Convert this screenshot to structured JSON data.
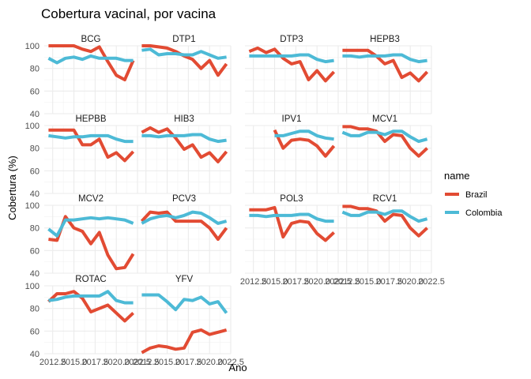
{
  "chart_data": {
    "type": "line",
    "title": "Cobertura vacinal, por vacina",
    "xlabel": "Ano",
    "ylabel": "Cobertura (%)",
    "ylim": [
      40,
      100
    ],
    "yticks": [
      40,
      60,
      80,
      100
    ],
    "xlim": [
      2011.5,
      2022.5
    ],
    "xticks": [
      2012.5,
      2015,
      2017.5,
      2020,
      2022.5
    ],
    "xtick_labels": [
      "2012.5",
      "2015.0",
      "2017.5",
      "2020.0",
      "2022.5"
    ],
    "legend": {
      "title": "name",
      "position": "right",
      "entries": [
        {
          "name": "Brazil",
          "color": "#E24B33"
        },
        {
          "name": "Colombia",
          "color": "#4DBAD6"
        }
      ]
    },
    "x": [
      2012,
      2013,
      2014,
      2015,
      2016,
      2017,
      2018,
      2019,
      2020,
      2021,
      2022
    ],
    "facets": [
      {
        "name": "BCG",
        "series": [
          {
            "name": "Brazil",
            "values": [
              100,
              100,
              100,
              100,
              97,
              95,
              99,
              86,
              74,
              70,
              87
            ]
          },
          {
            "name": "Colombia",
            "values": [
              89,
              85,
              89,
              90,
              88,
              91,
              89,
              89,
              89,
              87,
              87
            ]
          }
        ]
      },
      {
        "name": "DTP1",
        "series": [
          {
            "name": "Brazil",
            "values": [
              100,
              100,
              99,
              98,
              95,
              91,
              88,
              80,
              87,
              74,
              84
            ]
          },
          {
            "name": "Colombia",
            "values": [
              96,
              97,
              92,
              93,
              93,
              92,
              92,
              95,
              92,
              89,
              90
            ]
          }
        ]
      },
      {
        "name": "DTP3",
        "series": [
          {
            "name": "Brazil",
            "values": [
              95,
              98,
              94,
              97,
              89,
              84,
              86,
              70,
              78,
              69,
              77
            ]
          },
          {
            "name": "Colombia",
            "values": [
              91,
              91,
              91,
              91,
              91,
              91,
              92,
              92,
              88,
              86,
              87
            ]
          }
        ]
      },
      {
        "name": "HEPB3",
        "series": [
          {
            "name": "Brazil",
            "values": [
              96,
              96,
              96,
              96,
              91,
              84,
              87,
              72,
              76,
              69,
              77
            ]
          },
          {
            "name": "Colombia",
            "values": [
              91,
              91,
              90,
              91,
              91,
              91,
              92,
              92,
              88,
              86,
              87
            ]
          }
        ]
      },
      {
        "name": "HEPBB",
        "series": [
          {
            "name": "Brazil",
            "values": [
              96,
              96,
              96,
              96,
              83,
              83,
              88,
              72,
              76,
              69,
              77
            ]
          },
          {
            "name": "Colombia",
            "values": [
              91,
              90,
              89,
              90,
              90,
              91,
              91,
              91,
              88,
              86,
              86
            ]
          }
        ]
      },
      {
        "name": "HIB3",
        "series": [
          {
            "name": "Brazil",
            "values": [
              94,
              98,
              94,
              97,
              89,
              79,
              83,
              72,
              76,
              68,
              77
            ]
          },
          {
            "name": "Colombia",
            "values": [
              91,
              91,
              90,
              91,
              91,
              91,
              92,
              92,
              88,
              86,
              87
            ]
          }
        ]
      },
      {
        "name": "IPV1",
        "series": [
          {
            "name": "Brazil",
            "values": [
              null,
              null,
              null,
              96,
              80,
              87,
              88,
              87,
              82,
              73,
              82
            ]
          },
          {
            "name": "Colombia",
            "values": [
              null,
              null,
              null,
              91,
              91,
              93,
              95,
              95,
              91,
              89,
              88
            ]
          }
        ]
      },
      {
        "name": "MCV1",
        "series": [
          {
            "name": "Brazil",
            "values": [
              99,
              99,
              97,
              97,
              95,
              86,
              92,
              91,
              80,
              73,
              80
            ]
          },
          {
            "name": "Colombia",
            "values": [
              94,
              91,
              91,
              94,
              94,
              92,
              95,
              95,
              90,
              86,
              88
            ]
          }
        ]
      },
      {
        "name": "MCV2",
        "series": [
          {
            "name": "Brazil",
            "values": [
              70,
              69,
              90,
              80,
              77,
              66,
              76,
              56,
              44,
              45,
              57
            ]
          },
          {
            "name": "Colombia",
            "values": [
              79,
              73,
              87,
              87,
              88,
              89,
              88,
              89,
              88,
              87,
              84
            ]
          }
        ]
      },
      {
        "name": "PCV3",
        "series": [
          {
            "name": "Brazil",
            "values": [
              86,
              94,
              93,
              94,
              86,
              86,
              86,
              86,
              80,
              70,
              80
            ]
          },
          {
            "name": "Colombia",
            "values": [
              84,
              88,
              90,
              91,
              89,
              91,
              94,
              93,
              89,
              84,
              86
            ]
          }
        ]
      },
      {
        "name": "POL3",
        "series": [
          {
            "name": "Brazil",
            "values": [
              96,
              96,
              96,
              98,
              72,
              84,
              86,
              85,
              75,
              69,
              76
            ]
          },
          {
            "name": "Colombia",
            "values": [
              91,
              91,
              90,
              91,
              91,
              91,
              92,
              92,
              88,
              86,
              86
            ]
          }
        ]
      },
      {
        "name": "RCV1",
        "series": [
          {
            "name": "Brazil",
            "values": [
              99,
              99,
              97,
              97,
              95,
              86,
              92,
              91,
              80,
              73,
              80
            ]
          },
          {
            "name": "Colombia",
            "values": [
              94,
              91,
              91,
              94,
              94,
              92,
              95,
              95,
              90,
              86,
              88
            ]
          }
        ]
      },
      {
        "name": "ROTAC",
        "series": [
          {
            "name": "Brazil",
            "values": [
              86,
              93,
              93,
              95,
              89,
              77,
              80,
              83,
              76,
              69,
              76
            ]
          },
          {
            "name": "Colombia",
            "values": [
              87,
              88,
              90,
              91,
              91,
              91,
              91,
              95,
              87,
              85,
              85
            ]
          }
        ]
      },
      {
        "name": "YFV",
        "series": [
          {
            "name": "Brazil",
            "values": [
              41,
              45,
              47,
              46,
              44,
              45,
              59,
              61,
              57,
              59,
              61
            ]
          },
          {
            "name": "Colombia",
            "values": [
              92,
              92,
              92,
              86,
              79,
              88,
              87,
              90,
              84,
              86,
              76
            ]
          }
        ]
      }
    ]
  }
}
